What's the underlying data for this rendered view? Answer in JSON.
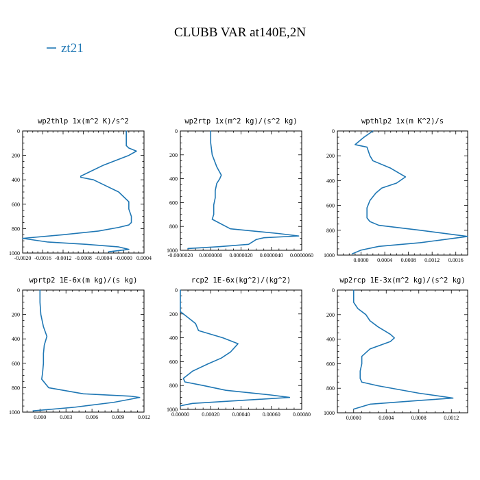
{
  "figure": {
    "title": "CLUBB VAR at140E,2N",
    "legend": [
      {
        "label": "zt21",
        "color": "#1f77b4"
      }
    ]
  },
  "chart_data": [
    {
      "type": "line",
      "title": "wp2thlp  1x(m^2 K)/s^2",
      "xlim": [
        -0.002,
        0.0004
      ],
      "ylim": [
        1000,
        0
      ],
      "xticks": [
        -0.002,
        -0.0016,
        -0.0012,
        -0.0008,
        -0.0004,
        0.0,
        0.0004
      ],
      "xtick_labels": [
        "-0.0020",
        "-0.0016",
        "-0.0012",
        "-0.0008",
        "-0.0004",
        "-0.0000",
        "0.0004"
      ],
      "yticks": [
        0,
        200,
        400,
        600,
        800,
        1000
      ],
      "ytick_labels": [
        "0",
        "200",
        "400",
        "600",
        "800",
        "1000"
      ],
      "series": [
        {
          "name": "zt21",
          "color": "#1f77b4",
          "x": [
            5e-05,
            5e-05,
            0.0001,
            0.00025,
            0.0001,
            -0.0004,
            -0.0007,
            -0.00085,
            -0.00085,
            -0.0006,
            -0.0004,
            -0.0001,
            0.0001,
            0.0001,
            0.00015,
            0.00015,
            0.0001,
            -0.0001,
            -0.0005,
            -0.0012,
            -0.002,
            -0.0015,
            -0.0007,
            -0.0001,
            0.0001,
            -0.0003
          ],
          "y": [
            0,
            120,
            140,
            165,
            200,
            280,
            340,
            370,
            380,
            400,
            440,
            500,
            580,
            640,
            700,
            750,
            770,
            790,
            820,
            850,
            880,
            910,
            930,
            950,
            970,
            990
          ]
        }
      ]
    },
    {
      "type": "line",
      "title": "wp2rtp  1x(m^2 kg)/(s^2 kg)",
      "xlim": [
        -2e-06,
        6e-06
      ],
      "ylim": [
        1000,
        0
      ],
      "xticks": [
        -2e-06,
        0.0,
        2e-06,
        4e-06,
        6e-06
      ],
      "xtick_labels": [
        "-0.0000020",
        "0.0000000",
        "0.0000020",
        "0.0000040",
        "0.0000060"
      ],
      "yticks": [
        0,
        200,
        400,
        600,
        800,
        1000
      ],
      "ytick_labels": [
        "0",
        "200",
        "400",
        "600",
        "800",
        "1000"
      ],
      "series": [
        {
          "name": "zt21",
          "color": "#1f77b4",
          "x": [
            0.0,
            0.0,
            1e-07,
            4e-07,
            7e-07,
            6e-07,
            4e-07,
            3e-07,
            3e-07,
            2e-07,
            2e-07,
            1e-07,
            1.3e-06,
            4.5e-06,
            5.8e-06,
            3.5e-06,
            3e-06,
            2.5e-06,
            5e-07,
            -1.5e-06
          ],
          "y": [
            0,
            100,
            200,
            300,
            370,
            400,
            440,
            500,
            560,
            620,
            700,
            740,
            820,
            860,
            880,
            895,
            910,
            950,
            970,
            985
          ]
        }
      ]
    },
    {
      "type": "line",
      "title": "wpthlp2  1x(m K^2)/s",
      "xlim": [
        -0.0004,
        0.0018
      ],
      "ylim": [
        1000,
        0
      ],
      "xticks": [
        0.0,
        0.0004,
        0.0008,
        0.0012,
        0.0016
      ],
      "xtick_labels": [
        "0.0000",
        "0.0004",
        "0.0008",
        "0.0012",
        "0.0016"
      ],
      "yticks": [
        0,
        200,
        400,
        600,
        800,
        1000
      ],
      "ytick_labels": [
        "0",
        "200",
        "400",
        "600",
        "800",
        "1000"
      ],
      "series": [
        {
          "name": "zt21",
          "color": "#1f77b4",
          "x": [
            0.0002,
            5e-05,
            -0.0001,
            0.0001,
            0.00015,
            0.0002,
            0.0005,
            0.00075,
            0.0006,
            0.00035,
            0.00025,
            0.00015,
            0.0001,
            0.0001,
            0.00015,
            0.0003,
            0.001,
            0.0018,
            0.001,
            0.0003,
            0.0,
            -0.00015
          ],
          "y": [
            0,
            50,
            110,
            130,
            200,
            240,
            300,
            370,
            420,
            460,
            500,
            560,
            620,
            700,
            730,
            760,
            800,
            850,
            900,
            930,
            960,
            990
          ]
        }
      ]
    },
    {
      "type": "line",
      "title": "wprtp2  1E-6x(m kg)/(s kg)",
      "xlim": [
        -0.002,
        0.012
      ],
      "ylim": [
        1000,
        0
      ],
      "xticks": [
        0.0,
        0.003,
        0.006,
        0.009,
        0.012
      ],
      "xtick_labels": [
        "0.000",
        "0.003",
        "0.006",
        "0.009",
        "0.012"
      ],
      "yticks": [
        0,
        200,
        400,
        600,
        800,
        1000
      ],
      "ytick_labels": [
        "0",
        "200",
        "400",
        "600",
        "800",
        "1000"
      ],
      "series": [
        {
          "name": "zt21",
          "color": "#1f77b4",
          "x": [
            0.0,
            0.0,
            0.0001,
            0.0004,
            0.0008,
            0.0005,
            0.0004,
            0.0004,
            0.0003,
            0.0002,
            0.001,
            0.005,
            0.0105,
            0.0115,
            0.0085,
            0.004,
            -0.0008
          ],
          "y": [
            0,
            100,
            200,
            300,
            380,
            450,
            520,
            600,
            680,
            730,
            800,
            850,
            870,
            880,
            920,
            960,
            990
          ]
        }
      ]
    },
    {
      "type": "line",
      "title": "rcp2  1E-6x(kg^2)/(kg^2)",
      "xlim": [
        0.0,
        0.0008
      ],
      "ylim": [
        1000,
        0
      ],
      "xticks": [
        0.0,
        0.0002,
        0.0004,
        0.0006,
        0.0008
      ],
      "xtick_labels": [
        "0.00000",
        "0.00020",
        "0.00040",
        "0.00060",
        "0.00080"
      ],
      "yticks": [
        0,
        200,
        400,
        600,
        800,
        1000
      ],
      "ytick_labels": [
        "0",
        "200",
        "400",
        "600",
        "800",
        "1000"
      ],
      "series": [
        {
          "name": "zt21",
          "color": "#1f77b4",
          "x": [
            0.0,
            0.0,
            5e-05,
            0.0001,
            0.00012,
            0.00028,
            0.00038,
            0.00033,
            0.00027,
            0.00018,
            8e-05,
            2e-05,
            3e-05,
            0.00015,
            0.0003,
            0.0006,
            0.00072,
            0.0004,
            8e-05,
            0.0
          ],
          "y": [
            0,
            180,
            230,
            280,
            340,
            400,
            450,
            520,
            570,
            620,
            680,
            740,
            770,
            800,
            840,
            880,
            900,
            925,
            950,
            970
          ]
        }
      ]
    },
    {
      "type": "line",
      "title": "wp2rcp  1E-3x(m^2 kg)/(s^2 kg)",
      "xlim": [
        -0.0002,
        0.0014
      ],
      "ylim": [
        1000,
        0
      ],
      "xticks": [
        0.0,
        0.0004,
        0.0008,
        0.0012
      ],
      "xtick_labels": [
        "0.0000",
        "0.0004",
        "0.0008",
        "0.0012"
      ],
      "yticks": [
        0,
        200,
        400,
        600,
        800,
        1000
      ],
      "ytick_labels": [
        "0",
        "200",
        "400",
        "600",
        "800",
        "1000"
      ],
      "series": [
        {
          "name": "zt21",
          "color": "#1f77b4",
          "x": [
            0.0,
            0.0,
            5e-05,
            0.00015,
            0.0002,
            0.0003,
            0.00045,
            0.0005,
            0.00045,
            0.0002,
            0.0001,
            0.0001,
            8e-05,
            8e-05,
            0.0001,
            0.0003,
            0.0008,
            0.00122,
            0.0008,
            0.0002,
            0.0
          ],
          "y": [
            0,
            100,
            150,
            200,
            250,
            300,
            360,
            390,
            420,
            480,
            540,
            600,
            660,
            720,
            750,
            780,
            840,
            880,
            900,
            930,
            970
          ]
        }
      ]
    }
  ]
}
